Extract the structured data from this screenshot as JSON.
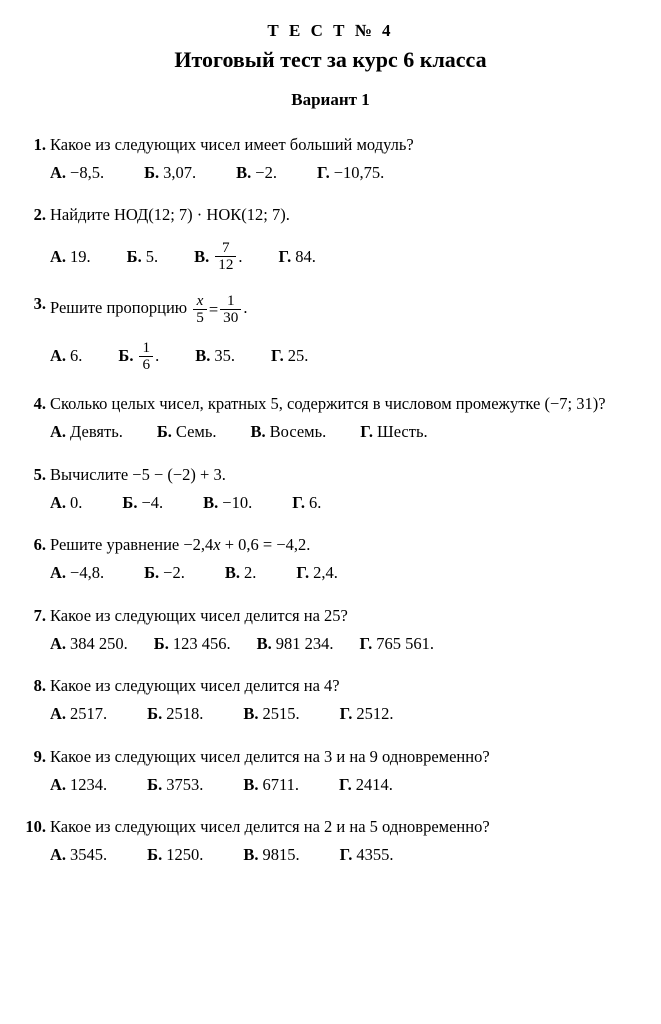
{
  "header": {
    "line1": "Т Е С Т  № 4",
    "line2": "Итоговый тест за курс 6 класса",
    "variant": "Вариант 1"
  },
  "questions": [
    {
      "num": "1.",
      "text": "Какое из следующих чисел имеет больший модуль?",
      "options": [
        {
          "label": "А.",
          "text": "−8,5."
        },
        {
          "label": "Б.",
          "text": "3,07."
        },
        {
          "label": "В.",
          "text": "−2."
        },
        {
          "label": "Г.",
          "text": "−10,75."
        }
      ],
      "opt_gap": 40
    },
    {
      "num": "2.",
      "text": "Найдите НОД(12; 7) · НОК(12; 7).",
      "options": [
        {
          "label": "А.",
          "text": "19."
        },
        {
          "label": "Б.",
          "text": "5."
        },
        {
          "label": "В.",
          "frac": {
            "num": "7",
            "den": "12"
          },
          "after": "."
        },
        {
          "label": "Г.",
          "text": "84."
        }
      ],
      "opt_gap": 36,
      "tall": true
    },
    {
      "num": "3.",
      "special": "prop",
      "text_before": "Решите пропорцию ",
      "prop_frac1": {
        "num": "x",
        "den": "5",
        "italic_num": true
      },
      "prop_eq": " = ",
      "prop_frac2": {
        "num": "1",
        "den": "30"
      },
      "text_after": ".",
      "options": [
        {
          "label": "А.",
          "text": "6."
        },
        {
          "label": "Б.",
          "frac": {
            "num": "1",
            "den": "6"
          },
          "after": "."
        },
        {
          "label": "В.",
          "text": "35."
        },
        {
          "label": "Г.",
          "text": "25."
        }
      ],
      "opt_gap": 36,
      "tall": true
    },
    {
      "num": "4.",
      "text": "Сколько целых чисел, кратных 5, содержится в числовом промежутке (−7; 31)?",
      "options": [
        {
          "label": "А.",
          "text": "Девять."
        },
        {
          "label": "Б.",
          "text": "Семь."
        },
        {
          "label": "В.",
          "text": "Восемь."
        },
        {
          "label": "Г.",
          "text": "Шесть."
        }
      ],
      "opt_gap": 34
    },
    {
      "num": "5.",
      "text": "Вычислите −5 − (−2) + 3.",
      "options": [
        {
          "label": "А.",
          "text": "0."
        },
        {
          "label": "Б.",
          "text": "−4."
        },
        {
          "label": "В.",
          "text": "−10."
        },
        {
          "label": "Г.",
          "text": "6."
        }
      ],
      "opt_gap": 40
    },
    {
      "num": "6.",
      "special": "eq",
      "text_before": "Решите уравнение −2,4",
      "x": "x",
      "text_after": " + 0,6 = −4,2.",
      "options": [
        {
          "label": "А.",
          "text": "−4,8."
        },
        {
          "label": "Б.",
          "text": "−2."
        },
        {
          "label": "В.",
          "text": "2."
        },
        {
          "label": "Г.",
          "text": "2,4."
        }
      ],
      "opt_gap": 40
    },
    {
      "num": "7.",
      "text": "Какое из следующих чисел делится на 25?",
      "options": [
        {
          "label": "А.",
          "text": "384 250."
        },
        {
          "label": "Б.",
          "text": "123 456."
        },
        {
          "label": "В.",
          "text": "981 234."
        },
        {
          "label": "Г.",
          "text": "765 561."
        }
      ],
      "opt_gap": 26
    },
    {
      "num": "8.",
      "text": "Какое из следующих чисел делится на 4?",
      "options": [
        {
          "label": "А.",
          "text": "2517."
        },
        {
          "label": "Б.",
          "text": "2518."
        },
        {
          "label": "В.",
          "text": "2515."
        },
        {
          "label": "Г.",
          "text": "2512."
        }
      ],
      "opt_gap": 40
    },
    {
      "num": "9.",
      "text": "Какое из следующих чисел делится на 3 и на 9 одновре­менно?",
      "options": [
        {
          "label": "А.",
          "text": "1234."
        },
        {
          "label": "Б.",
          "text": "3753."
        },
        {
          "label": "В.",
          "text": "6711."
        },
        {
          "label": "Г.",
          "text": "2414."
        }
      ],
      "opt_gap": 40
    },
    {
      "num": "10.",
      "text": "Какое из следующих чисел делится на 2 и на 5 одновре­менно?",
      "options": [
        {
          "label": "А.",
          "text": "3545."
        },
        {
          "label": "Б.",
          "text": "1250."
        },
        {
          "label": "В.",
          "text": "9815."
        },
        {
          "label": "Г.",
          "text": "4355."
        }
      ],
      "opt_gap": 40
    }
  ]
}
